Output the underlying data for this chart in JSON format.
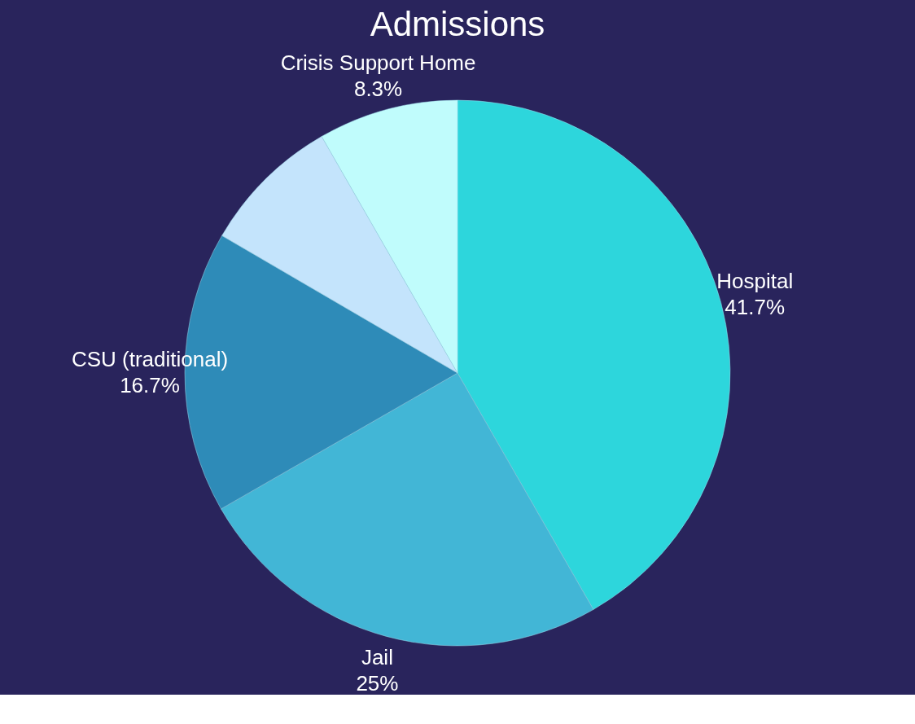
{
  "chart_data": {
    "type": "pie",
    "title": "Admissions",
    "categories": [
      "Hospital",
      "Jail",
      "CSU (traditional)",
      null,
      "Crisis Support Home"
    ],
    "values": [
      41.7,
      25,
      16.7,
      8.3,
      8.3
    ],
    "colors": [
      "#2dd6dc",
      "#42b6d6",
      "#2e8bb8",
      "#c4e4fc",
      "#c0fcfc"
    ],
    "value_labels": [
      "41.7%",
      "25%",
      "16.7%",
      null,
      "8.3%"
    ],
    "legend": false
  }
}
